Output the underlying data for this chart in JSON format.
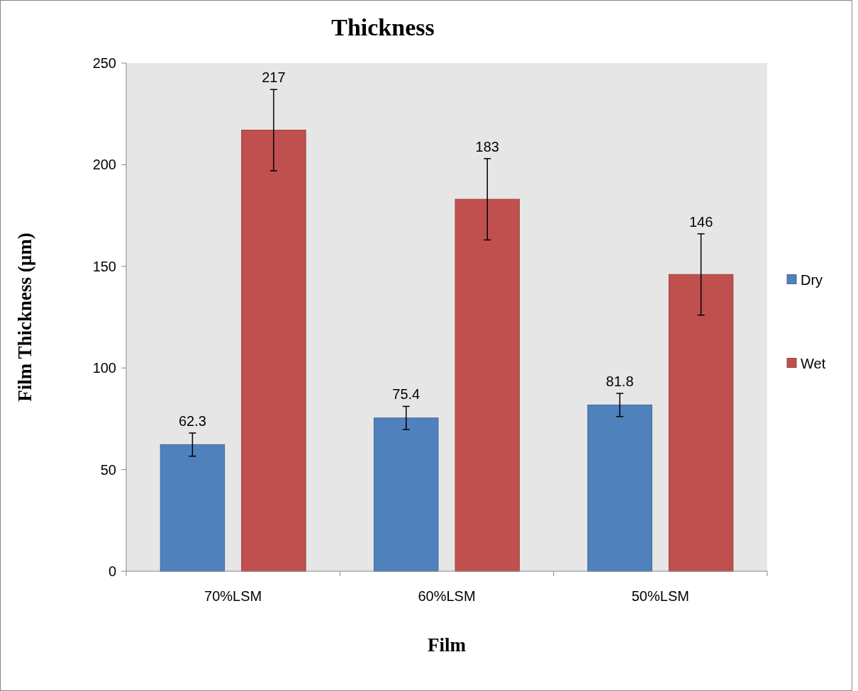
{
  "chart_data": {
    "type": "bar",
    "title": "Thickness",
    "xlabel": "Film",
    "ylabel": "Film Thickness (µm)",
    "categories": [
      "70%LSM",
      "60%LSM",
      "50%LSM"
    ],
    "series": [
      {
        "name": "Dry",
        "color": "#4f81bd",
        "values": [
          62.3,
          75.4,
          81.8
        ],
        "errors": [
          5.7,
          5.7,
          5.7
        ]
      },
      {
        "name": "Wet",
        "color": "#c0504d",
        "values": [
          217,
          183,
          146
        ],
        "errors": [
          20,
          20,
          20
        ]
      }
    ],
    "ylim": [
      0,
      250
    ],
    "yticks": [
      0,
      50,
      100,
      150,
      200,
      250
    ],
    "grid": false,
    "legend": "right",
    "data_labels": true
  }
}
